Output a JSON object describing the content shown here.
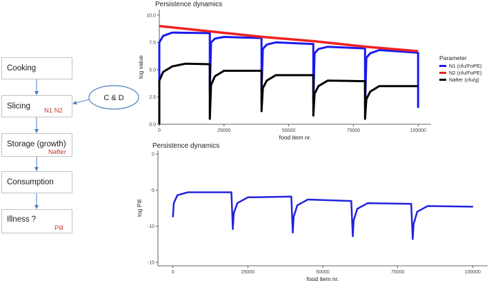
{
  "flow": {
    "boxes": [
      {
        "label": "Cooking",
        "var": ""
      },
      {
        "label": "Slicing",
        "var": "N1 N2"
      },
      {
        "label": "Storage (growth)",
        "var": "Nafter"
      },
      {
        "label": "Consumption",
        "var": ""
      },
      {
        "label": "Illness ?",
        "var": "Pill"
      }
    ],
    "cd_label": "C & D"
  },
  "colors": {
    "n1": "#1a1aee",
    "n2": "#ee2222",
    "nafter": "#000000",
    "pill": "#2222dd",
    "arrow": "#4a7fc1"
  },
  "chart_data": [
    {
      "type": "line",
      "title": "Persistence dynamics",
      "xlabel": "food item nr.",
      "ylabel": "log value",
      "xlim": [
        0,
        105000
      ],
      "ylim": [
        0,
        10.5
      ],
      "xticks": [
        "0",
        "25000",
        "50000",
        "75000",
        "100000"
      ],
      "yticks": [
        "0.0",
        "2.5",
        "5.0",
        "7.5",
        "10.0"
      ],
      "legend_title": "Parameter",
      "legend_position": "right",
      "grid": false,
      "series": [
        {
          "name": "N1 (cfu/FoPE)",
          "color": "#1a1aee",
          "points": [
            [
              0,
              0
            ],
            [
              0,
              7.5
            ],
            [
              1500,
              8.1
            ],
            [
              5000,
              8.4
            ],
            [
              19500,
              8.35
            ],
            [
              19500,
              3.0
            ],
            [
              20000,
              7.5
            ],
            [
              21500,
              7.85
            ],
            [
              25000,
              8.0
            ],
            [
              39500,
              7.9
            ],
            [
              39500,
              3.0
            ],
            [
              40000,
              6.9
            ],
            [
              41500,
              7.3
            ],
            [
              45000,
              7.5
            ],
            [
              59500,
              7.35
            ],
            [
              59500,
              2.0
            ],
            [
              60000,
              6.5
            ],
            [
              61500,
              6.9
            ],
            [
              65000,
              7.1
            ],
            [
              79500,
              6.95
            ],
            [
              79500,
              1.5
            ],
            [
              80000,
              6.1
            ],
            [
              81500,
              6.5
            ],
            [
              85000,
              6.8
            ],
            [
              100000,
              6.55
            ],
            [
              100000,
              1.5
            ]
          ]
        },
        {
          "name": "N2 (cfu/FoPE)",
          "color": "#ee2222",
          "points": [
            [
              0,
              9.0
            ],
            [
              20000,
              8.5
            ],
            [
              40000,
              8.0
            ],
            [
              60000,
              7.6
            ],
            [
              80000,
              7.1
            ],
            [
              100000,
              6.7
            ]
          ]
        },
        {
          "name": "Nafter (cfu/g)",
          "color": "#000000",
          "points": [
            [
              0,
              0
            ],
            [
              0,
              4.0
            ],
            [
              1500,
              4.8
            ],
            [
              5000,
              5.3
            ],
            [
              10000,
              5.55
            ],
            [
              19500,
              5.5
            ],
            [
              19500,
              0.5
            ],
            [
              20000,
              3.6
            ],
            [
              21500,
              4.4
            ],
            [
              25000,
              4.9
            ],
            [
              39500,
              4.9
            ],
            [
              39500,
              1.2
            ],
            [
              40000,
              3.3
            ],
            [
              41500,
              4.0
            ],
            [
              45000,
              4.5
            ],
            [
              59500,
              4.5
            ],
            [
              59500,
              0.8
            ],
            [
              60000,
              2.8
            ],
            [
              61500,
              3.5
            ],
            [
              65000,
              4.0
            ],
            [
              79500,
              3.95
            ],
            [
              79500,
              0.5
            ],
            [
              80000,
              2.3
            ],
            [
              81500,
              3.0
            ],
            [
              85000,
              3.5
            ],
            [
              100000,
              3.5
            ]
          ]
        }
      ]
    },
    {
      "type": "line",
      "title": "Persistence dynamics",
      "xlabel": "food item nr.",
      "ylabel": "log Pill",
      "xlim": [
        -5000,
        105000
      ],
      "ylim": [
        -15.5,
        0.5
      ],
      "xticks": [
        "0",
        "25000",
        "50000",
        "75000",
        "100000"
      ],
      "yticks": [
        "0",
        "-5",
        "-10",
        "-15"
      ],
      "grid": false,
      "series": [
        {
          "name": "",
          "color": "#2222dd",
          "points": [
            [
              0,
              -8.7
            ],
            [
              300,
              -6.8
            ],
            [
              1500,
              -5.7
            ],
            [
              5000,
              -5.3
            ],
            [
              19500,
              -5.3
            ],
            [
              20000,
              -10.4
            ],
            [
              20300,
              -8.2
            ],
            [
              21500,
              -6.8
            ],
            [
              25000,
              -6.0
            ],
            [
              39500,
              -5.9
            ],
            [
              40000,
              -10.9
            ],
            [
              40300,
              -8.7
            ],
            [
              41500,
              -7.1
            ],
            [
              45000,
              -6.3
            ],
            [
              59500,
              -6.5
            ],
            [
              60000,
              -11.4
            ],
            [
              60300,
              -9.2
            ],
            [
              61500,
              -7.6
            ],
            [
              65000,
              -6.8
            ],
            [
              79500,
              -6.9
            ],
            [
              80000,
              -11.8
            ],
            [
              80300,
              -9.7
            ],
            [
              81500,
              -8.0
            ],
            [
              85000,
              -7.2
            ],
            [
              100000,
              -7.3
            ]
          ]
        }
      ]
    }
  ]
}
